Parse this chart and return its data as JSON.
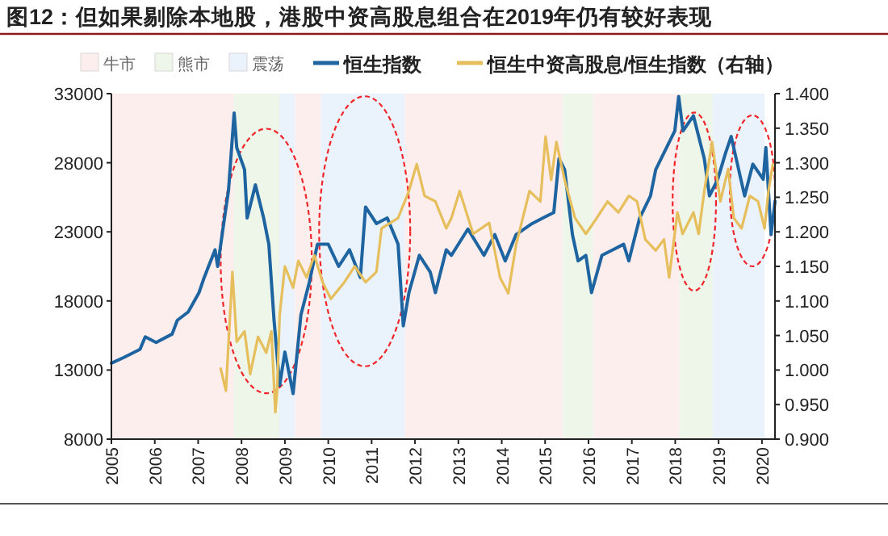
{
  "chart_data": {
    "type": "line",
    "title": "图12：但如果剔除本地股，港股中资高股息组合在2019年仍有较好表现",
    "legend": "top",
    "xlim": [
      2005,
      2020.3
    ],
    "xticks": [
      2005,
      2006,
      2007,
      2008,
      2009,
      2010,
      2011,
      2012,
      2013,
      2014,
      2015,
      2016,
      2017,
      2018,
      2019,
      2020
    ],
    "ylim": [
      8000,
      33000
    ],
    "yticks": [
      8000,
      13000,
      18000,
      23000,
      28000,
      33000
    ],
    "y2lim": [
      0.9,
      1.4
    ],
    "y2ticks": [
      {
        "value": 0.9,
        "label": "0.900"
      },
      {
        "value": 0.95,
        "label": "0.950"
      },
      {
        "value": 1.0,
        "label": "1.000"
      },
      {
        "value": 1.05,
        "label": "1.050"
      },
      {
        "value": 1.1,
        "label": "1.100"
      },
      {
        "value": 1.15,
        "label": "1.150"
      },
      {
        "value": 1.2,
        "label": "1.200"
      },
      {
        "value": 1.25,
        "label": "1.250"
      },
      {
        "value": 1.3,
        "label": "1.300"
      },
      {
        "value": 1.35,
        "label": "1.350"
      },
      {
        "value": 1.4,
        "label": "1.400"
      }
    ],
    "bands": [
      {
        "axis": "x",
        "from": 2005,
        "to": 2007.83,
        "label": "牛市",
        "color": "#fdeeee"
      },
      {
        "axis": "x",
        "from": 2007.83,
        "to": 2008.87,
        "label": "熊市",
        "color": "#eef5e9"
      },
      {
        "axis": "x",
        "from": 2008.87,
        "to": 2009.23,
        "label": "震荡",
        "color": "#eaf2fb"
      },
      {
        "axis": "x",
        "from": 2009.23,
        "to": 2009.83,
        "color": "#fdeeee"
      },
      {
        "axis": "x",
        "from": 2009.83,
        "to": 2011.77,
        "color": "#eaf2fb"
      },
      {
        "axis": "x",
        "from": 2011.77,
        "to": 2015.41,
        "color": "#fdeeee"
      },
      {
        "axis": "x",
        "from": 2015.41,
        "to": 2016.12,
        "color": "#eef5e9"
      },
      {
        "axis": "x",
        "from": 2016.12,
        "to": 2018.09,
        "color": "#fdeeee"
      },
      {
        "axis": "x",
        "from": 2018.09,
        "to": 2018.87,
        "color": "#eef5e9"
      },
      {
        "axis": "x",
        "from": 2018.87,
        "to": 2020.06,
        "color": "#eaf2fb"
      }
    ],
    "series": [
      {
        "name": "恒生指数",
        "color": "#1d64a0",
        "x": [
          2005.0,
          2005.28,
          2005.66,
          2005.78,
          2006.03,
          2006.4,
          2006.52,
          2006.77,
          2007.02,
          2007.14,
          2007.39,
          2007.45,
          2007.58,
          2007.7,
          2007.83,
          2007.89,
          2008.07,
          2008.13,
          2008.32,
          2008.51,
          2008.63,
          2008.75,
          2008.88,
          2009.0,
          2009.19,
          2009.37,
          2009.56,
          2009.75,
          2010.0,
          2010.24,
          2010.49,
          2010.74,
          2010.86,
          2011.11,
          2011.36,
          2011.61,
          2011.73,
          2011.86,
          2012.1,
          2012.35,
          2012.47,
          2012.72,
          2012.84,
          2013.22,
          2013.59,
          2013.84,
          2014.08,
          2014.33,
          2014.7,
          2014.95,
          2015.2,
          2015.32,
          2015.45,
          2015.63,
          2015.76,
          2015.94,
          2016.07,
          2016.31,
          2016.56,
          2016.81,
          2016.93,
          2017.18,
          2017.43,
          2017.55,
          2017.8,
          2017.99,
          2018.08,
          2018.18,
          2018.42,
          2018.67,
          2018.79,
          2018.98,
          2019.16,
          2019.29,
          2019.6,
          2019.79,
          2020.03,
          2020.09,
          2020.21,
          2020.3
        ],
        "values": [
          13500,
          13900,
          14500,
          15400,
          15000,
          15600,
          16600,
          17200,
          18600,
          19700,
          21700,
          20500,
          23400,
          26000,
          31600,
          29100,
          27500,
          24000,
          26400,
          24000,
          22100,
          16600,
          11900,
          14300,
          11300,
          17000,
          19300,
          22100,
          22100,
          20500,
          21700,
          19700,
          24800,
          23600,
          24000,
          22100,
          16200,
          18600,
          21300,
          20100,
          18600,
          21700,
          21300,
          23200,
          21300,
          22800,
          20900,
          22800,
          23600,
          24000,
          24400,
          28300,
          27500,
          22800,
          20900,
          21300,
          18600,
          21300,
          21700,
          22100,
          20900,
          24000,
          25600,
          27500,
          29100,
          30300,
          32800,
          30300,
          31400,
          28300,
          25600,
          26800,
          28700,
          29900,
          25600,
          27900,
          26800,
          29100,
          22800,
          25200
        ]
      },
      {
        "name": "恒生中资高股息/恒生指数（右轴）",
        "color": "#e6bf5c",
        "axis": "y2",
        "x": [
          2007.52,
          2007.64,
          2007.79,
          2007.89,
          2008.07,
          2008.2,
          2008.38,
          2008.57,
          2008.69,
          2008.78,
          2008.82,
          2008.88,
          2009.0,
          2009.19,
          2009.31,
          2009.5,
          2009.68,
          2009.87,
          2010.06,
          2010.37,
          2010.61,
          2010.86,
          2011.11,
          2011.23,
          2011.61,
          2011.86,
          2012.04,
          2012.22,
          2012.47,
          2012.72,
          2012.84,
          2013.03,
          2013.34,
          2013.71,
          2013.96,
          2014.15,
          2014.33,
          2014.64,
          2014.89,
          2015.01,
          2015.14,
          2015.26,
          2015.45,
          2015.69,
          2015.94,
          2016.19,
          2016.44,
          2016.69,
          2016.93,
          2017.12,
          2017.31,
          2017.55,
          2017.74,
          2017.86,
          2018.05,
          2018.17,
          2018.42,
          2018.54,
          2018.67,
          2018.85,
          2019.04,
          2019.22,
          2019.35,
          2019.53,
          2019.72,
          2019.91,
          2020.06,
          2020.15,
          2020.25
        ],
        "values": [
          1.002,
          0.97,
          1.142,
          1.041,
          1.056,
          0.994,
          1.048,
          1.025,
          1.056,
          0.939,
          0.97,
          1.08,
          1.15,
          1.119,
          1.158,
          1.134,
          1.166,
          1.127,
          1.103,
          1.127,
          1.15,
          1.127,
          1.142,
          1.205,
          1.22,
          1.259,
          1.298,
          1.252,
          1.244,
          1.205,
          1.22,
          1.259,
          1.197,
          1.213,
          1.134,
          1.111,
          1.181,
          1.259,
          1.244,
          1.338,
          1.275,
          1.33,
          1.275,
          1.22,
          1.197,
          1.22,
          1.244,
          1.228,
          1.252,
          1.244,
          1.189,
          1.173,
          1.189,
          1.134,
          1.228,
          1.197,
          1.228,
          1.197,
          1.259,
          1.33,
          1.244,
          1.291,
          1.22,
          1.205,
          1.252,
          1.244,
          1.205,
          1.259,
          1.298
        ]
      }
    ]
  }
}
